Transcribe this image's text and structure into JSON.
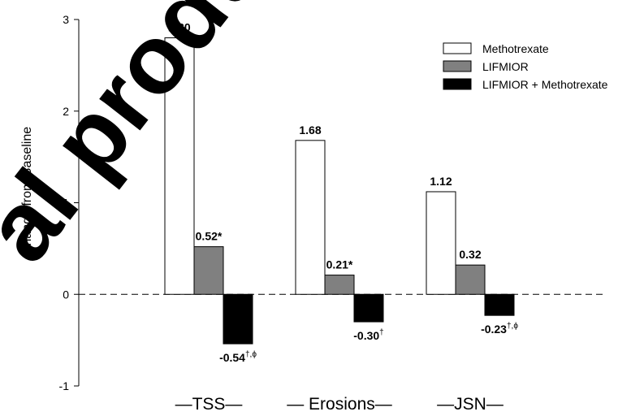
{
  "chart_data": {
    "type": "bar",
    "categories": [
      "TSS",
      "Erosions",
      "JSN"
    ],
    "category_labels": [
      "—TSS—",
      "— Erosions—",
      "—JSN—"
    ],
    "series": [
      {
        "name": "Methotrexate",
        "values": [
          2.8,
          1.68,
          1.12
        ],
        "color": "#ffffff"
      },
      {
        "name": "LIFMIOR",
        "values": [
          0.52,
          0.21,
          0.32
        ],
        "color": "#808080"
      },
      {
        "name": "LIFMIOR + Methotrexate",
        "values": [
          -0.54,
          -0.3,
          -0.23
        ],
        "color": "#000000"
      }
    ],
    "data_labels": [
      [
        "2.80",
        "1.68",
        "1.12"
      ],
      [
        "0.52*",
        "0.21*",
        "0.32"
      ],
      [
        "-0.54",
        "-0.30",
        "-0.23"
      ]
    ],
    "data_label_superscripts": [
      [
        "",
        "",
        ""
      ],
      [
        "",
        "",
        ""
      ],
      [
        "†,ϕ",
        "†",
        "†,ϕ"
      ]
    ],
    "ylabel": "Change from Baseline",
    "xlabel": "",
    "title": "",
    "ylim": [
      -1,
      3
    ],
    "yticks": [
      -1,
      0,
      1,
      2,
      3
    ],
    "legend_position": "top-right",
    "zero_line": "dashed",
    "grid": false
  },
  "watermark": {
    "text": "al produc"
  }
}
